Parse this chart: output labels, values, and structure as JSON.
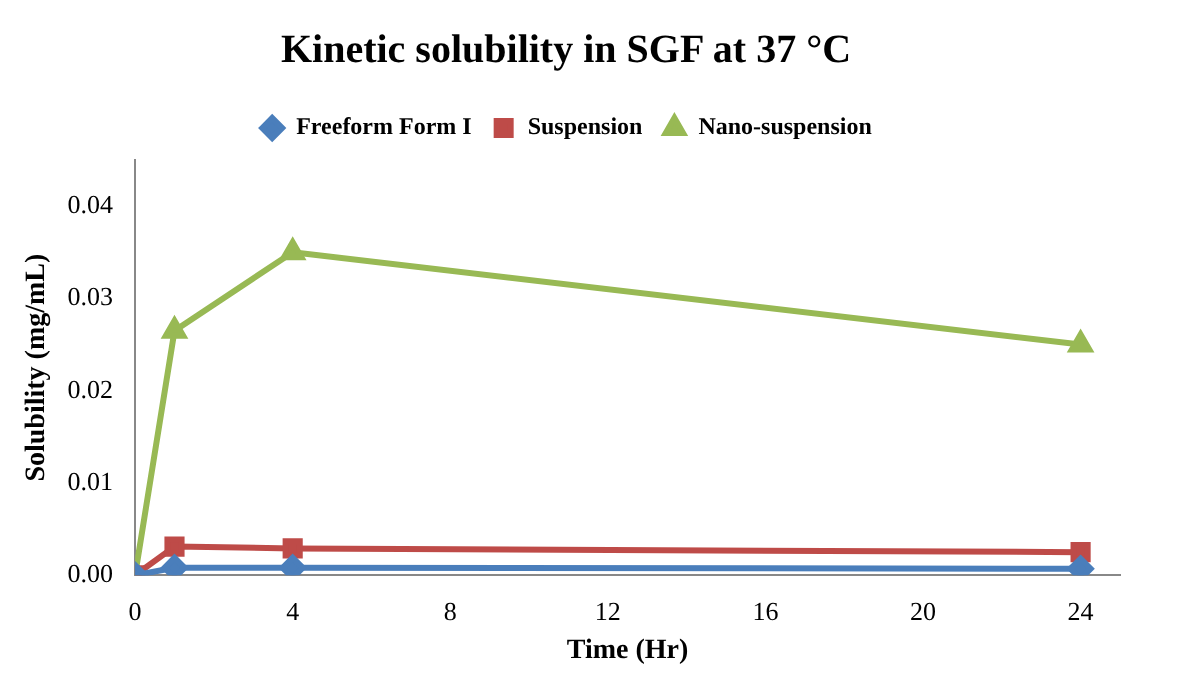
{
  "chart_data": {
    "type": "line",
    "title": "Kinetic solubility in SGF at 37 °C",
    "xlabel": "Time (Hr)",
    "ylabel": "Solubility (mg/mL)",
    "x": [
      0,
      1,
      4,
      24
    ],
    "series": [
      {
        "name": "Freeform Form I",
        "color": "#4a7ebb",
        "marker": "diamond",
        "values": [
          0,
          0.0008,
          0.0008,
          0.0007
        ]
      },
      {
        "name": "Suspension",
        "color": "#be4b48",
        "marker": "square",
        "values": [
          0,
          0.0031,
          0.0029,
          0.0025
        ]
      },
      {
        "name": "Nano-suspension",
        "color": "#98b954",
        "marker": "triangle",
        "values": [
          0,
          0.0265,
          0.035,
          0.025
        ]
      }
    ],
    "xlim": [
      0,
      25
    ],
    "xticks": [
      0,
      4,
      8,
      12,
      16,
      20,
      24
    ],
    "ylim": [
      0,
      0.045
    ],
    "yticks": [
      {
        "value": 0,
        "label": "0.00"
      },
      {
        "value": 0.01,
        "label": "0.01"
      },
      {
        "value": 0.02,
        "label": "0.02"
      },
      {
        "value": 0.03,
        "label": "0.03"
      },
      {
        "value": 0.04,
        "label": "0.04"
      }
    ],
    "grid": false,
    "legend": "top",
    "line_style": "solid"
  }
}
